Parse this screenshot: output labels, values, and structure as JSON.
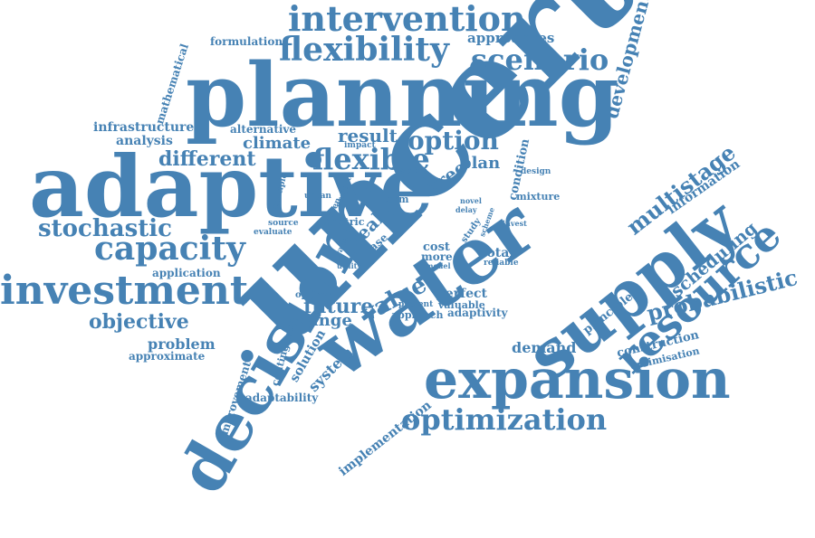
{
  "color": "#4682b4",
  "words": [
    {
      "id": "uncertainty",
      "text": "uncertainty"
    },
    {
      "id": "planning",
      "text": "planning"
    },
    {
      "id": "adaptive",
      "text": "adaptive"
    },
    {
      "id": "water",
      "text": "water"
    },
    {
      "id": "decision",
      "text": "decision"
    },
    {
      "id": "supply",
      "text": "supply"
    },
    {
      "id": "expansion",
      "text": "expansion"
    },
    {
      "id": "intervention",
      "text": "intervention"
    },
    {
      "id": "flexibility",
      "text": "flexibility"
    },
    {
      "id": "scenario",
      "text": "scenario"
    },
    {
      "id": "approaches",
      "text": "approaches"
    },
    {
      "id": "formulation",
      "text": "formulation"
    },
    {
      "id": "mathematical",
      "text": "mathematical"
    },
    {
      "id": "development",
      "text": "development"
    },
    {
      "id": "infrastructure",
      "text": "infrastructure"
    },
    {
      "id": "analysis",
      "text": "analysis"
    },
    {
      "id": "alternative",
      "text": "alternative"
    },
    {
      "id": "climate",
      "text": "climate"
    },
    {
      "id": "result",
      "text": "result"
    },
    {
      "id": "option",
      "text": "option"
    },
    {
      "id": "impact",
      "text": "impact"
    },
    {
      "id": "flexible",
      "text": "flexible"
    },
    {
      "id": "different",
      "text": "different"
    },
    {
      "id": "stage",
      "text": "stage"
    },
    {
      "id": "tree",
      "text": "tree"
    },
    {
      "id": "plan",
      "text": "plan"
    },
    {
      "id": "condition",
      "text": "condition"
    },
    {
      "id": "design",
      "text": "design"
    },
    {
      "id": "mixture",
      "text": "mixture"
    },
    {
      "id": "multistage",
      "text": "multistage"
    },
    {
      "id": "information",
      "text": "information"
    },
    {
      "id": "stochastic",
      "text": "stochastic"
    },
    {
      "id": "capacity",
      "text": "capacity"
    },
    {
      "id": "multiple",
      "text": "multiple"
    },
    {
      "id": "urban",
      "text": "urban"
    },
    {
      "id": "project",
      "text": "project"
    },
    {
      "id": "chosen",
      "text": "chosen"
    },
    {
      "id": "term",
      "text": "term"
    },
    {
      "id": "novel",
      "text": "novel"
    },
    {
      "id": "delay",
      "text": "delay"
    },
    {
      "id": "source",
      "text": "source"
    },
    {
      "id": "evaluate",
      "text": "evaluate"
    },
    {
      "id": "metric",
      "text": "metric"
    },
    {
      "id": "real",
      "text": "real"
    },
    {
      "id": "case",
      "text": "case"
    },
    {
      "id": "trade",
      "text": "trade"
    },
    {
      "id": "study",
      "text": "study"
    },
    {
      "id": "scheme",
      "text": "scheme"
    },
    {
      "id": "invest",
      "text": "invest"
    },
    {
      "id": "resource",
      "text": "resource"
    },
    {
      "id": "scheduling",
      "text": "scheduling"
    },
    {
      "id": "probabilistic",
      "text": "probabilistic"
    },
    {
      "id": "investment",
      "text": "investment"
    },
    {
      "id": "application",
      "text": "application"
    },
    {
      "id": "utility",
      "text": "utility"
    },
    {
      "id": "cost",
      "text": "cost"
    },
    {
      "id": "more",
      "text": "more"
    },
    {
      "id": "total",
      "text": "total"
    },
    {
      "id": "model",
      "text": "model"
    },
    {
      "id": "reliable",
      "text": "reliable"
    },
    {
      "id": "value",
      "text": "value"
    },
    {
      "id": "optimal",
      "text": "optimal"
    },
    {
      "id": "perfect",
      "text": "perfect"
    },
    {
      "id": "valuable",
      "text": "valuable"
    },
    {
      "id": "future",
      "text": "future"
    },
    {
      "id": "present",
      "text": "present"
    },
    {
      "id": "adaptivity",
      "text": "adaptivity"
    },
    {
      "id": "objective",
      "text": "objective"
    },
    {
      "id": "change",
      "text": "change"
    },
    {
      "id": "approach",
      "text": "approach"
    },
    {
      "id": "principle",
      "text": "principle"
    },
    {
      "id": "construction",
      "text": "construction"
    },
    {
      "id": "optimisation",
      "text": "optimisation"
    },
    {
      "id": "problem",
      "text": "problem"
    },
    {
      "id": "contingency",
      "text": "contingency"
    },
    {
      "id": "solution",
      "text": "solution"
    },
    {
      "id": "system",
      "text": "system"
    },
    {
      "id": "demand",
      "text": "demand"
    },
    {
      "id": "approximate",
      "text": "approximate"
    },
    {
      "id": "improvement",
      "text": "improvement"
    },
    {
      "id": "adaptability",
      "text": "adaptability"
    },
    {
      "id": "implementation",
      "text": "implementation"
    },
    {
      "id": "optimization",
      "text": "optimization"
    }
  ]
}
